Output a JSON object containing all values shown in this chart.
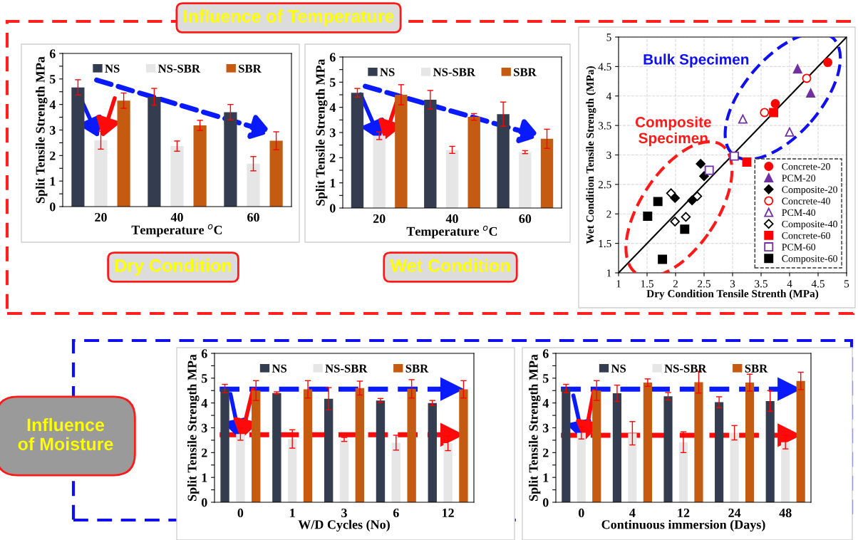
{
  "chart_data": [
    {
      "type": "bar",
      "xlabel": "Temperature $^{o}$C",
      "ylabel": "Split Tensile Strength MPa",
      "categories": [
        "20",
        "40",
        "60"
      ],
      "ylim": [
        0,
        6
      ],
      "yticks": [
        0,
        {
          "value": 0.5,
          "label": null
        },
        1,
        {
          "value": 1.5,
          "label": null
        },
        2,
        {
          "value": 2.5,
          "label": null
        },
        3,
        {
          "value": 3.5,
          "label": null
        },
        4,
        {
          "value": 4.5,
          "label": null
        },
        5,
        {
          "value": 5.5,
          "label": null
        },
        6
      ],
      "legend": "top",
      "annotations": [
        "Influence of Temperature",
        "Dry Condition"
      ],
      "series": [
        {
          "name": "NS",
          "color": "#333d4f",
          "values": [
            4.67,
            4.3,
            3.7
          ],
          "errors": [
            0.3,
            0.33,
            0.3
          ]
        },
        {
          "name": "NS-SBR",
          "color": "#e6e6e6",
          "values": [
            2.6,
            2.37,
            1.68
          ],
          "errors": [
            0.35,
            0.2,
            0.28
          ]
        },
        {
          "name": "SBR",
          "color": "#c55a11",
          "values": [
            4.15,
            3.18,
            2.58
          ],
          "errors": [
            0.3,
            0.2,
            0.35
          ]
        }
      ]
    },
    {
      "type": "bar",
      "xlabel": "Temperature $^{o}$C",
      "ylabel": "Split Tensile Strength MPa",
      "categories": [
        "20",
        "40",
        "60"
      ],
      "ylim": [
        0,
        6
      ],
      "yticks": [
        0,
        {
          "value": 0.5,
          "label": null
        },
        1,
        {
          "value": 1.5,
          "label": null
        },
        2,
        {
          "value": 2.5,
          "label": null
        },
        3,
        {
          "value": 3.5,
          "label": null
        },
        4,
        {
          "value": 4.5,
          "label": null
        },
        5,
        {
          "value": 5.5,
          "label": null
        },
        6
      ],
      "legend": "top",
      "annotations": [
        "Wet Condition"
      ],
      "series": [
        {
          "name": "NS",
          "color": "#333d4f",
          "values": [
            4.58,
            4.3,
            3.73
          ],
          "errors": [
            0.17,
            0.37,
            0.48
          ]
        },
        {
          "name": "NS-SBR",
          "color": "#e6e6e6",
          "values": [
            2.87,
            2.31,
            2.22
          ],
          "errors": [
            0.15,
            0.14,
            0.06
          ]
        },
        {
          "name": "SBR",
          "color": "#c55a11",
          "values": [
            4.5,
            3.62,
            2.75
          ],
          "errors": [
            0.4,
            0.13,
            0.38
          ]
        }
      ]
    },
    {
      "type": "scatter",
      "xlabel": "Dry Condition Tensile Strenth (MPa)",
      "ylabel": "Wet Condition Tensile Strength (MPa)",
      "xlim": [
        1,
        5
      ],
      "ylim": [
        1,
        5
      ],
      "xticks": [
        1,
        1.5,
        2,
        2.5,
        3,
        3.5,
        4,
        4.5,
        5
      ],
      "yticks": [
        1,
        1.5,
        2,
        2.5,
        3,
        3.5,
        4,
        4.5,
        5
      ],
      "grid": true,
      "legend": "bottom right",
      "annotations": [
        "Bulk Specimen",
        "Composite Specimen"
      ],
      "series": [
        {
          "type": "line",
          "color": "#000000",
          "x": [
            1,
            5
          ],
          "values": [
            1,
            5
          ]
        },
        {
          "name": "Concrete-20",
          "color": "#ff0000",
          "marker": "circle",
          "x": [
            4.67,
            3.75
          ],
          "values": [
            4.57,
            3.87
          ]
        },
        {
          "name": "PCM-20",
          "color": "#7030a0",
          "marker": "triangle",
          "x": [
            4.14,
            4.37
          ],
          "values": [
            4.46,
            4.05
          ]
        },
        {
          "name": "Composite-20",
          "color": "#000000",
          "marker": "diamond",
          "x": [
            2.44,
            2.5,
            1.99,
            2.29
          ],
          "values": [
            2.85,
            2.64,
            2.27,
            2.23
          ]
        },
        {
          "name": "Concrete-40",
          "color": "#ff0000",
          "marker": "circle-open",
          "x": [
            4.3,
            3.56
          ],
          "values": [
            4.3,
            3.72
          ]
        },
        {
          "name": "PCM-40",
          "color": "#7030a0",
          "marker": "triangle-open",
          "x": [
            3.18,
            4.0
          ],
          "values": [
            3.61,
            3.39
          ]
        },
        {
          "name": "Composite-40",
          "color": "#000000",
          "marker": "diamond-open",
          "x": [
            1.92,
            2.38,
            1.99,
            2.18
          ],
          "values": [
            2.35,
            2.3,
            1.87,
            1.95
          ]
        },
        {
          "name": "Concrete-60",
          "color": "#ff0000",
          "marker": "square",
          "x": [
            3.72,
            3.25
          ],
          "values": [
            3.72,
            2.88
          ]
        },
        {
          "name": "PCM-60",
          "color": "#7030a0",
          "marker": "square-open",
          "x": [
            2.59,
            3.03
          ],
          "values": [
            2.74,
            2.98
          ]
        },
        {
          "name": "Composite-60",
          "color": "#000000",
          "marker": "square",
          "x": [
            1.69,
            1.51,
            2.16,
            1.77
          ],
          "values": [
            2.21,
            1.96,
            1.74,
            1.23
          ]
        }
      ]
    },
    {
      "type": "bar",
      "xlabel": "W/D Cycles (No)",
      "ylabel": "Split Tensile Strength MPa",
      "categories": [
        "0",
        "1",
        "3",
        "6",
        "12"
      ],
      "ylim": [
        0,
        6
      ],
      "yticks": [
        0,
        {
          "value": 0.5,
          "label": null
        },
        1,
        {
          "value": 1.5,
          "label": null
        },
        2,
        {
          "value": 2.5,
          "label": null
        },
        3,
        {
          "value": 3.5,
          "label": null
        },
        4,
        {
          "value": 4.5,
          "label": null
        },
        5,
        {
          "value": 5.5,
          "label": null
        },
        6
      ],
      "legend": "top",
      "annotations": [
        "Influence of Moisture"
      ],
      "ref_lines": [
        {
          "axis": "y",
          "value": 4.56,
          "color": "#0a1aff",
          "line_style": "dashed"
        },
        {
          "axis": "y",
          "value": 2.72,
          "color": "#ff0a0a",
          "line_style": "dashed"
        }
      ],
      "series": [
        {
          "name": "NS",
          "color": "#333d4f",
          "values": [
            4.58,
            4.4,
            4.17,
            4.1,
            4.0
          ],
          "errors": [
            0.17,
            0.05,
            0.45,
            0.08,
            0.1
          ]
        },
        {
          "name": "NS-SBR",
          "color": "#e6e6e6",
          "values": [
            2.75,
            2.55,
            2.53,
            2.4,
            2.38
          ],
          "errors": [
            0.25,
            0.37,
            0.08,
            0.3,
            0.3
          ]
        },
        {
          "name": "SBR",
          "color": "#c55a11",
          "values": [
            4.5,
            4.55,
            4.6,
            4.57,
            4.55
          ],
          "errors": [
            0.4,
            0.35,
            0.28,
            0.37,
            0.35
          ]
        }
      ]
    },
    {
      "type": "bar",
      "xlabel": "Continuous immersion (Days)",
      "ylabel": "Split Tensile Strength MPa",
      "categories": [
        "0",
        "4",
        "12",
        "24",
        "48"
      ],
      "ylim": [
        0,
        6
      ],
      "yticks": [
        0,
        {
          "value": 0.5,
          "label": null
        },
        1,
        {
          "value": 1.5,
          "label": null
        },
        2,
        {
          "value": 2.5,
          "label": null
        },
        3,
        {
          "value": 3.5,
          "label": null
        },
        4,
        {
          "value": 4.5,
          "label": null
        },
        5,
        {
          "value": 5.5,
          "label": null
        },
        6
      ],
      "legend": "top",
      "ref_lines": [
        {
          "axis": "y",
          "value": 4.56,
          "color": "#0a1aff",
          "line_style": "dashed"
        },
        {
          "axis": "y",
          "value": 2.7,
          "color": "#ff0a0a",
          "line_style": "dashed"
        }
      ],
      "series": [
        {
          "name": "NS",
          "color": "#333d4f",
          "values": [
            4.58,
            4.39,
            4.27,
            4.03,
            4.08
          ],
          "errors": [
            0.17,
            0.33,
            0.15,
            0.22,
            0.42
          ]
        },
        {
          "name": "NS-SBR",
          "color": "#e6e6e6",
          "values": [
            2.8,
            2.78,
            2.42,
            2.8,
            2.42
          ],
          "errors": [
            0.25,
            0.47,
            0.42,
            0.29,
            0.27
          ]
        },
        {
          "name": "SBR",
          "color": "#c55a11",
          "values": [
            4.5,
            4.82,
            4.84,
            4.82,
            4.89
          ],
          "errors": [
            0.4,
            0.15,
            0.44,
            0.34,
            0.35
          ]
        }
      ]
    }
  ]
}
